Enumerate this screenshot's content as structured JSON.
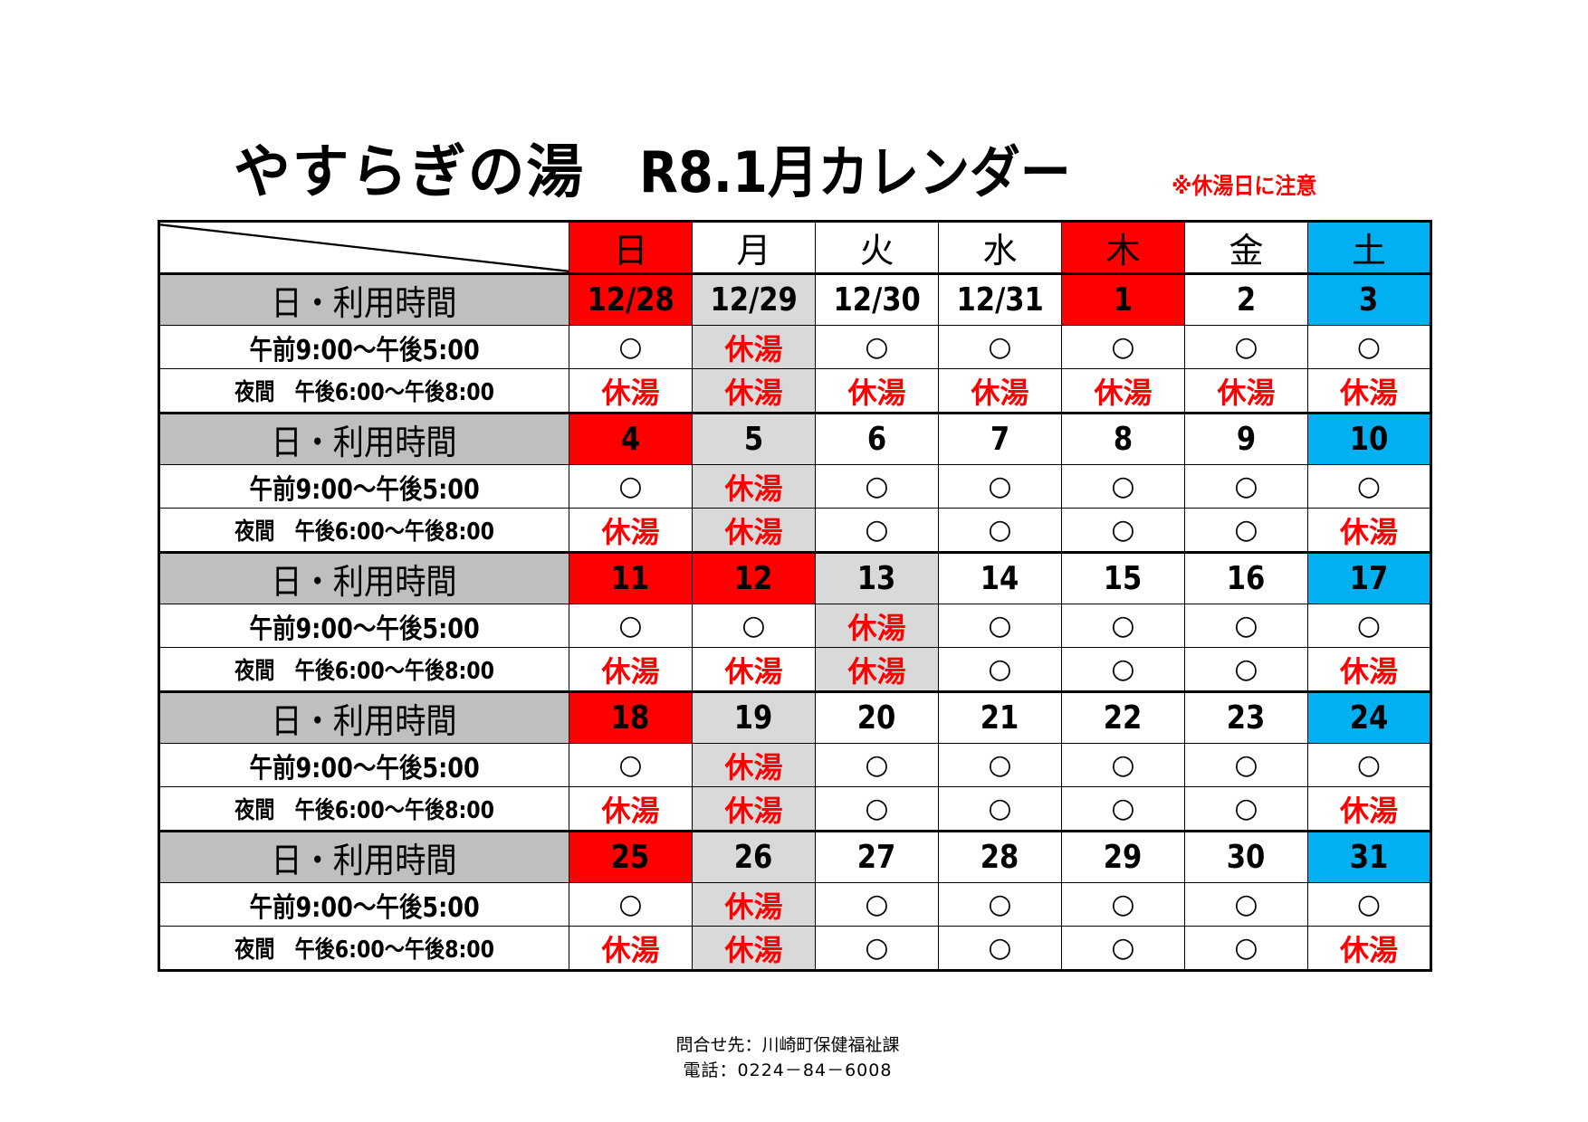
{
  "header": {
    "facility_name": "やすらぎの湯",
    "calendar_title": "R8.1月カレンダー",
    "note": "※休湯日に注意"
  },
  "colors": {
    "sunday_holiday": "#ff0000",
    "saturday": "#00b0f0",
    "closed_day": "#d9d9d9",
    "label_row": "#bfbfbf",
    "closed_text": "#ff0000"
  },
  "table": {
    "weekdays": [
      {
        "label": "日",
        "bg": "red"
      },
      {
        "label": "月",
        "bg": "white"
      },
      {
        "label": "火",
        "bg": "white"
      },
      {
        "label": "水",
        "bg": "white"
      },
      {
        "label": "木",
        "bg": "red"
      },
      {
        "label": "金",
        "bg": "white"
      },
      {
        "label": "土",
        "bg": "blue"
      }
    ],
    "row_labels": {
      "date": "日・利用時間",
      "am": "午前9:00～午後5:00",
      "pm": "夜間　午後6:00～午後8:00"
    },
    "symbols": {
      "open": "○",
      "closed": "休湯"
    },
    "weeks": [
      {
        "dates": [
          "12/28",
          "12/29",
          "12/30",
          "12/31",
          "1",
          "2",
          "3"
        ],
        "date_bg": [
          "red",
          "gray",
          "white",
          "white",
          "red",
          "white",
          "blue"
        ],
        "am": [
          "○",
          "休湯",
          "○",
          "○",
          "○",
          "○",
          "○"
        ],
        "am_bg": [
          "white",
          "gray",
          "white",
          "white",
          "white",
          "white",
          "white"
        ],
        "pm": [
          "休湯",
          "休湯",
          "休湯",
          "休湯",
          "休湯",
          "休湯",
          "休湯"
        ],
        "pm_bg": [
          "white",
          "gray",
          "white",
          "white",
          "white",
          "white",
          "white"
        ]
      },
      {
        "dates": [
          "4",
          "5",
          "6",
          "7",
          "8",
          "9",
          "10"
        ],
        "date_bg": [
          "red",
          "gray",
          "white",
          "white",
          "white",
          "white",
          "blue"
        ],
        "am": [
          "○",
          "休湯",
          "○",
          "○",
          "○",
          "○",
          "○"
        ],
        "am_bg": [
          "white",
          "gray",
          "white",
          "white",
          "white",
          "white",
          "white"
        ],
        "pm": [
          "休湯",
          "休湯",
          "○",
          "○",
          "○",
          "○",
          "休湯"
        ],
        "pm_bg": [
          "white",
          "gray",
          "white",
          "white",
          "white",
          "white",
          "white"
        ]
      },
      {
        "dates": [
          "11",
          "12",
          "13",
          "14",
          "15",
          "16",
          "17"
        ],
        "date_bg": [
          "red",
          "red",
          "gray",
          "white",
          "white",
          "white",
          "blue"
        ],
        "am": [
          "○",
          "○",
          "休湯",
          "○",
          "○",
          "○",
          "○"
        ],
        "am_bg": [
          "white",
          "white",
          "gray",
          "white",
          "white",
          "white",
          "white"
        ],
        "pm": [
          "休湯",
          "休湯",
          "休湯",
          "○",
          "○",
          "○",
          "休湯"
        ],
        "pm_bg": [
          "white",
          "white",
          "gray",
          "white",
          "white",
          "white",
          "white"
        ]
      },
      {
        "dates": [
          "18",
          "19",
          "20",
          "21",
          "22",
          "23",
          "24"
        ],
        "date_bg": [
          "red",
          "gray",
          "white",
          "white",
          "white",
          "white",
          "blue"
        ],
        "am": [
          "○",
          "休湯",
          "○",
          "○",
          "○",
          "○",
          "○"
        ],
        "am_bg": [
          "white",
          "gray",
          "white",
          "white",
          "white",
          "white",
          "white"
        ],
        "pm": [
          "休湯",
          "休湯",
          "○",
          "○",
          "○",
          "○",
          "休湯"
        ],
        "pm_bg": [
          "white",
          "gray",
          "white",
          "white",
          "white",
          "white",
          "white"
        ]
      },
      {
        "dates": [
          "25",
          "26",
          "27",
          "28",
          "29",
          "30",
          "31"
        ],
        "date_bg": [
          "red",
          "gray",
          "white",
          "white",
          "white",
          "white",
          "blue"
        ],
        "am": [
          "○",
          "休湯",
          "○",
          "○",
          "○",
          "○",
          "○"
        ],
        "am_bg": [
          "white",
          "gray",
          "white",
          "white",
          "white",
          "white",
          "white"
        ],
        "pm": [
          "休湯",
          "休湯",
          "○",
          "○",
          "○",
          "○",
          "休湯"
        ],
        "pm_bg": [
          "white",
          "gray",
          "white",
          "white",
          "white",
          "white",
          "white"
        ]
      }
    ]
  },
  "footer": {
    "contact": "問合せ先：川崎町保健福祉課",
    "phone": "電話：0224－84－6008"
  }
}
